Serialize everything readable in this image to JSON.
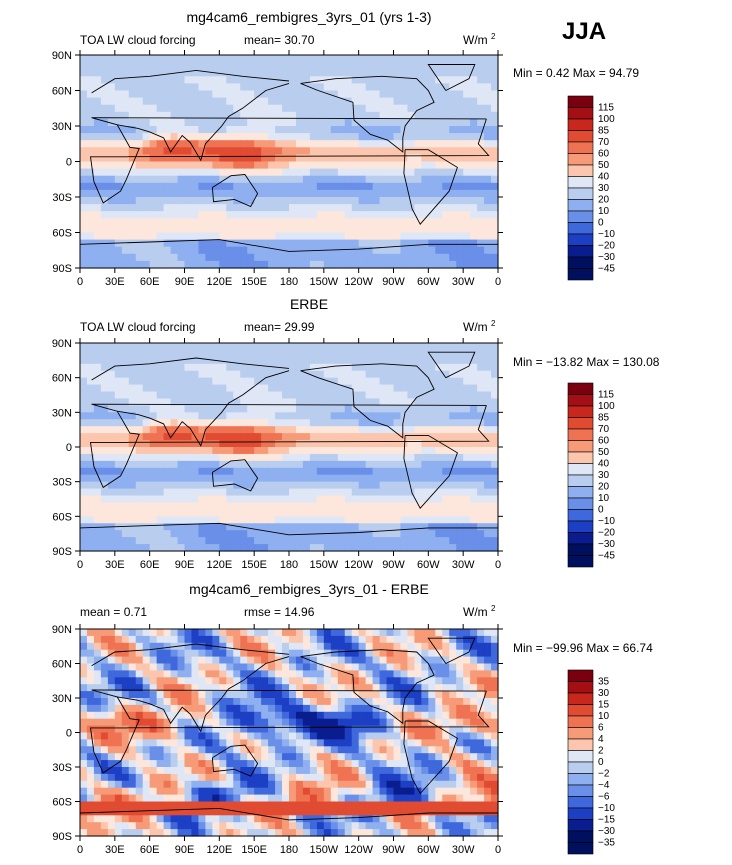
{
  "season": "JJA",
  "longitude_ticks": [
    "0",
    "30E",
    "60E",
    "90E",
    "120E",
    "150E",
    "180",
    "150W",
    "120W",
    "90W",
    "60W",
    "30W",
    "0"
  ],
  "latitude_ticks": [
    "90N",
    "60N",
    "30N",
    "0",
    "30S",
    "60S",
    "90S"
  ],
  "panels": [
    {
      "title": "mg4cam6_rembigres_3yrs_01 (yrs 1-3)",
      "left_label": "TOA LW cloud forcing",
      "mean_text": "mean=  30.70",
      "units": "W/m",
      "units_sup": "2",
      "minmax": "Min =   0.42 Max =  94.79",
      "colorbar": [
        "115",
        "100",
        "85",
        "70",
        "60",
        "50",
        "40",
        "30",
        "20",
        "10",
        "0",
        "−10",
        "−20",
        "−30",
        "−45"
      ]
    },
    {
      "title": "ERBE",
      "left_label": "TOA LW cloud forcing",
      "mean_text": "mean=  29.99",
      "units": "W/m",
      "units_sup": "2",
      "minmax": "Min = −13.82 Max = 130.08",
      "colorbar": [
        "115",
        "100",
        "85",
        "70",
        "60",
        "50",
        "40",
        "30",
        "20",
        "10",
        "0",
        "−10",
        "−20",
        "−30",
        "−45"
      ]
    },
    {
      "title": "mg4cam6_rembigres_3yrs_01 - ERBE",
      "left_label": "mean =    0.71",
      "mean_text": "rmse =  14.96",
      "units": "W/m",
      "units_sup": "2",
      "minmax": "Min = −99.96 Max =  66.74",
      "colorbar": [
        "35",
        "30",
        "15",
        "10",
        "6",
        "4",
        "2",
        "0",
        "−2",
        "−4",
        "−6",
        "−10",
        "−15",
        "−30",
        "−35"
      ]
    }
  ],
  "chart_data": [
    {
      "type": "heatmap",
      "title": "mg4cam6_rembigres_3yrs_01 (yrs 1-3)",
      "xlim": [
        0,
        360
      ],
      "ylim": [
        -90,
        90
      ],
      "levels": [
        -45,
        -30,
        -20,
        -10,
        0,
        10,
        20,
        30,
        40,
        50,
        60,
        70,
        85,
        100,
        115
      ],
      "mean": 30.7,
      "min": 0.42,
      "max": 94.79,
      "units": "W/m2"
    },
    {
      "type": "heatmap",
      "title": "ERBE",
      "xlim": [
        0,
        360
      ],
      "ylim": [
        -90,
        90
      ],
      "levels": [
        -45,
        -30,
        -20,
        -10,
        0,
        10,
        20,
        30,
        40,
        50,
        60,
        70,
        85,
        100,
        115
      ],
      "mean": 29.99,
      "min": -13.82,
      "max": 130.08,
      "units": "W/m2"
    },
    {
      "type": "heatmap",
      "title": "mg4cam6_rembigres_3yrs_01 - ERBE",
      "xlim": [
        0,
        360
      ],
      "ylim": [
        -90,
        90
      ],
      "levels": [
        -35,
        -30,
        -15,
        -10,
        -6,
        -4,
        -2,
        0,
        2,
        4,
        6,
        10,
        15,
        30,
        35
      ],
      "mean": 0.71,
      "rmse": 14.96,
      "min": -99.96,
      "max": 66.74,
      "units": "W/m2"
    }
  ]
}
